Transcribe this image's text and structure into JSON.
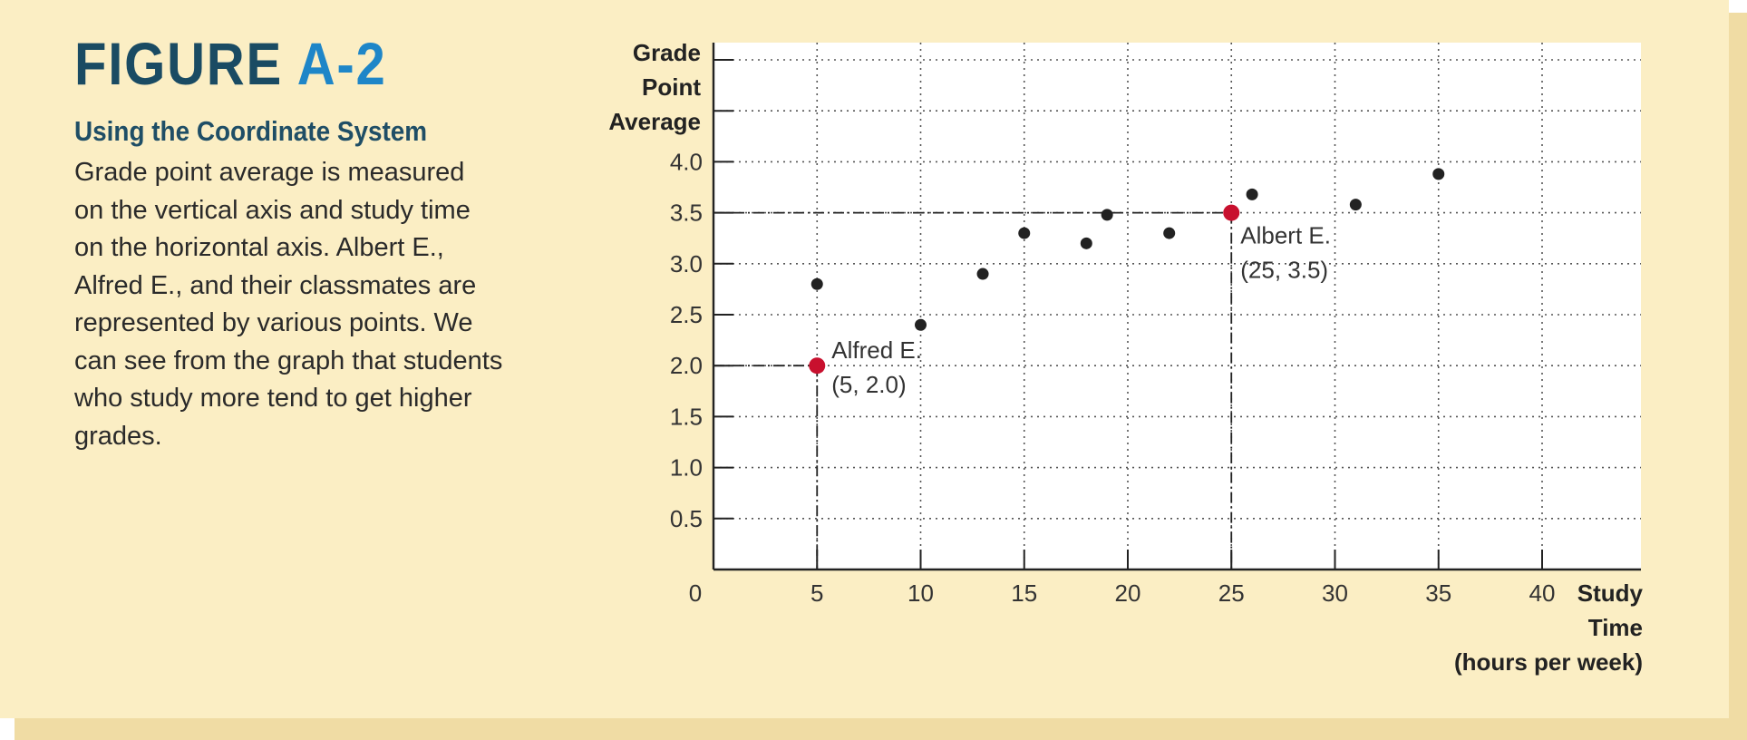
{
  "figure": {
    "label": "FIGURE",
    "number": "A-2",
    "heading": "Using the Coordinate System",
    "caption_lines": [
      "Grade point average is measured",
      "on the vertical axis and study time",
      "on the horizontal axis. Albert E.,",
      "Alfred E., and their classmates are",
      "represented by various points. We",
      "can see from the graph that students",
      "who study more tend to get higher",
      "grades."
    ]
  },
  "colors": {
    "panel": "#fbeec4",
    "title": "#1a4b63",
    "title_number": "#1e86c8",
    "highlight": "#c8102e",
    "point": "#222222"
  },
  "chart_data": {
    "type": "scatter",
    "title": "",
    "ylabel_lines": [
      "Grade",
      "Point",
      "Average"
    ],
    "xlabel_lines": [
      "Study",
      "Time",
      "(hours per week)"
    ],
    "origin_label": "0",
    "xlim": [
      0,
      45
    ],
    "ylim": [
      0,
      5.3
    ],
    "grid": true,
    "x_ticks": [
      5,
      10,
      15,
      20,
      25,
      30,
      35,
      40
    ],
    "y_ticks": [
      0.5,
      1.0,
      1.5,
      2.0,
      2.5,
      3.0,
      3.5,
      4.0
    ],
    "x_tick_labels": [
      "5",
      "10",
      "15",
      "20",
      "25",
      "30",
      "35",
      "40"
    ],
    "y_tick_labels": [
      "0.5",
      "1.0",
      "1.5",
      "2.0",
      "2.5",
      "3.0",
      "3.5",
      "4.0"
    ],
    "points": [
      {
        "x": 5,
        "y": 2.8
      },
      {
        "x": 10,
        "y": 2.4
      },
      {
        "x": 13,
        "y": 2.9
      },
      {
        "x": 15,
        "y": 3.3
      },
      {
        "x": 18,
        "y": 3.2
      },
      {
        "x": 19,
        "y": 3.48
      },
      {
        "x": 22,
        "y": 3.3
      },
      {
        "x": 26,
        "y": 3.68
      },
      {
        "x": 31,
        "y": 3.58
      },
      {
        "x": 35,
        "y": 3.88
      }
    ],
    "highlighted": [
      {
        "name": "Alfred E.",
        "coord": "(5, 2.0)",
        "x": 5,
        "y": 2.0
      },
      {
        "name": "Albert E.",
        "coord": "(25, 3.5)",
        "x": 25,
        "y": 3.5
      }
    ]
  }
}
